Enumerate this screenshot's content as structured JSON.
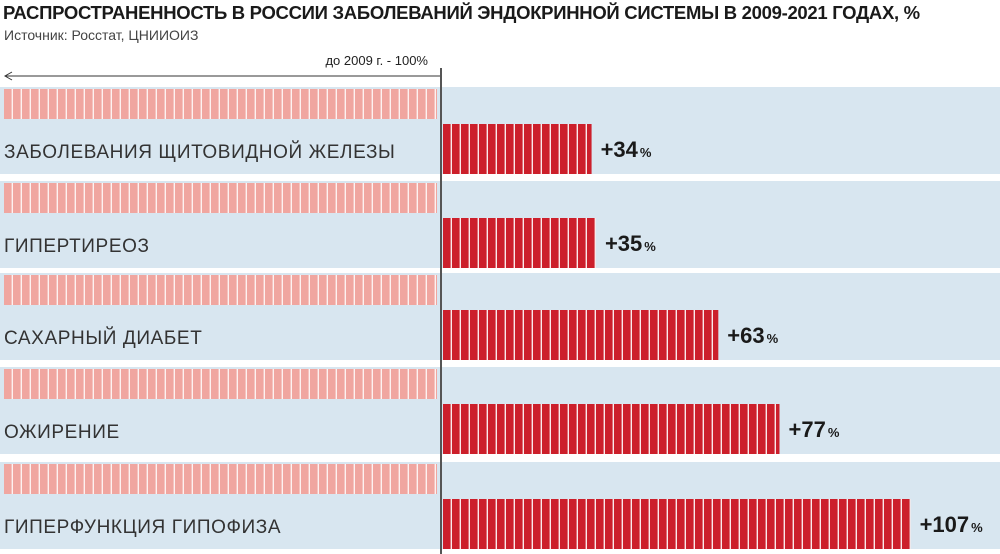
{
  "title": "РАСПРОСТРАНЕННОСТЬ В РОССИИ ЗАБОЛЕВАНИЙ ЭНДОКРИННОЙ СИСТЕМЫ В 2009-2021 ГОДАХ, %",
  "source": "Источник: Росстат, ЦНИИОИЗ",
  "colors": {
    "band": "#d8e6f0",
    "baseline_bar": "#f0a6a0",
    "increase_bar": "#cc1f2b",
    "divider": "#555555"
  },
  "chart_data": {
    "type": "bar",
    "title": "РАСПРОСТРАНЕННОСТЬ В РОССИИ ЗАБОЛЕВАНИЙ ЭНДОКРИННОЙ СИСТЕМЫ В 2009-2021 ГОДАХ, %",
    "baseline_label": "до 2009 г. - 100%",
    "baseline_value": 100,
    "categories": [
      "ЗАБОЛЕВАНИЯ ЩИТОВИДНОЙ ЖЕЛЕЗЫ",
      "ГИПЕРТИРЕОЗ",
      "САХАРНЫЙ ДИАБЕТ",
      "ОЖИРЕНИЕ",
      "ГИПЕРФУНКЦИЯ ГИПОФИЗА"
    ],
    "values": [
      34,
      35,
      63,
      77,
      107
    ],
    "value_labels": [
      "+34",
      "+35",
      "+63",
      "+77",
      "+107"
    ],
    "unit": "%",
    "legend": false,
    "grid": false
  }
}
